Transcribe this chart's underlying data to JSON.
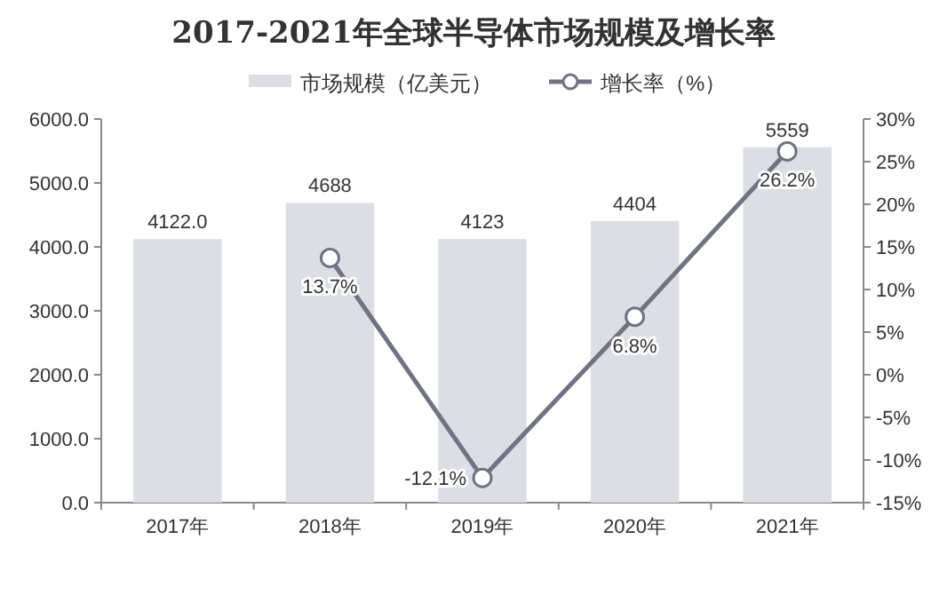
{
  "chart_data": {
    "type": "bar",
    "title": "2017-2021年全球半导体市场规模及增长率",
    "categories": [
      "2017年",
      "2018年",
      "2019年",
      "2020年",
      "2021年"
    ],
    "series": [
      {
        "name": "市场规模（亿美元）",
        "color": "#dcdee5",
        "values": [
          4122.0,
          4688,
          4123,
          4404,
          5559
        ],
        "value_labels": [
          "4122.0",
          "4688",
          "4123",
          "4404",
          "5559"
        ]
      },
      {
        "name": "增长率（%）",
        "type": "line",
        "axis": "y2",
        "color": "#6f7384",
        "values": [
          null,
          13.7,
          -12.1,
          6.8,
          26.2
        ],
        "value_labels": [
          null,
          "13.7%",
          "-12.1%",
          "6.8%",
          "26.2%"
        ]
      }
    ],
    "ylim": [
      0,
      6000
    ],
    "yticks": [
      {
        "value": 0,
        "label": "0.0"
      },
      {
        "value": 1000,
        "label": "1000.0"
      },
      {
        "value": 2000,
        "label": "2000.0"
      },
      {
        "value": 3000,
        "label": "3000.0"
      },
      {
        "value": 4000,
        "label": "4000.0"
      },
      {
        "value": 5000,
        "label": "5000.0"
      },
      {
        "value": 6000,
        "label": "6000.0"
      }
    ],
    "y2lim": [
      -15,
      30
    ],
    "y2ticks": [
      {
        "value": -15,
        "label": "-15%"
      },
      {
        "value": -10,
        "label": "-10%"
      },
      {
        "value": -5,
        "label": "-5%"
      },
      {
        "value": 0,
        "label": "0%"
      },
      {
        "value": 5,
        "label": "5%"
      },
      {
        "value": 10,
        "label": "10%"
      },
      {
        "value": 15,
        "label": "15%"
      },
      {
        "value": 20,
        "label": "20%"
      },
      {
        "value": 25,
        "label": "25%"
      },
      {
        "value": 30,
        "label": "30%"
      }
    ],
    "grid": false,
    "legend": "top",
    "marker": "circle",
    "line_style": "solid"
  }
}
